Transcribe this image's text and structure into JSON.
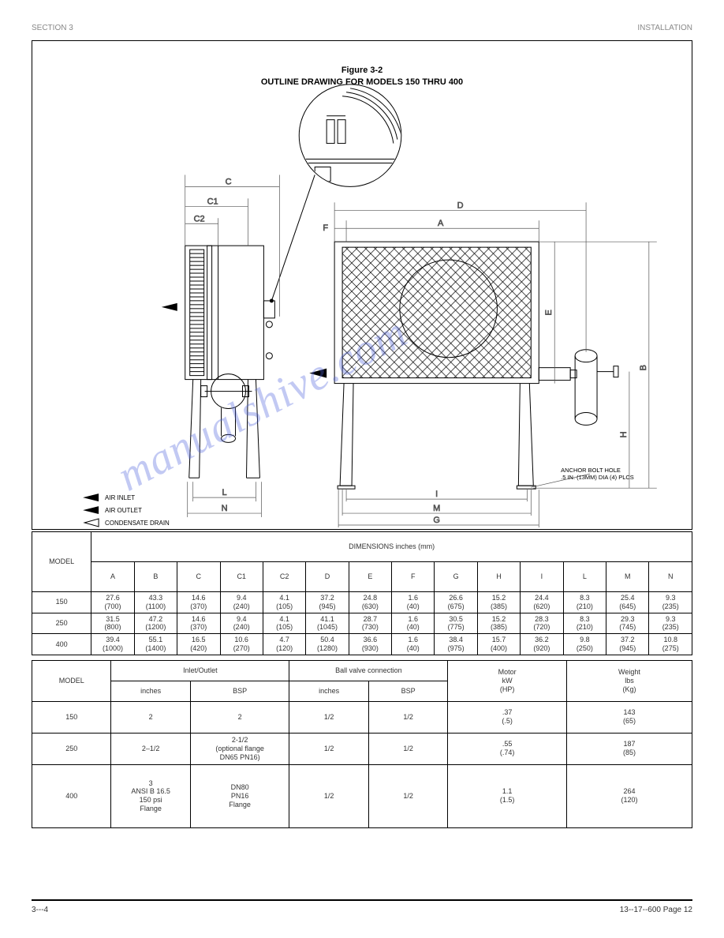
{
  "header": {
    "section": "SECTION 3",
    "title": "INSTALLATION"
  },
  "diagram": {
    "fig_label": "Figure 3-2",
    "fig_title": "OUTLINE DRAWING FOR MODELS 150 THRU 400",
    "inlet_label": "AIR INLET",
    "outlet_label": "AIR OUTLET",
    "drain_label": "CONDENSATE DRAIN",
    "anchor_label": "ANCHOR BOLT HOLE\n.5 IN. (13MM) DIA (4) PLCS",
    "dims": {
      "A": "A",
      "B": "B",
      "C": "C",
      "C1": "C1",
      "C2": "C2",
      "D": "D",
      "E": "E",
      "F": "F",
      "G": "G",
      "H": "H",
      "I": "I",
      "L": "L",
      "M": "M",
      "N": "N"
    }
  },
  "table_dims": {
    "model_header": "MODEL",
    "dim_header": "DIMENSIONS inches (mm)",
    "cols": [
      "A",
      "B",
      "C",
      "C1",
      "C2",
      "D",
      "E",
      "F",
      "G",
      "H",
      "I",
      "L",
      "M",
      "N"
    ],
    "rows": [
      {
        "model": "150",
        "A": "27.6\n(700)",
        "B": "43.3\n(1100)",
        "C": "14.6\n(370)",
        "C1": "9.4\n(240)",
        "C2": "4.1\n(105)",
        "D": "37.2\n(945)",
        "E": "24.8\n(630)",
        "F": "1.6\n(40)",
        "G": "26.6\n(675)",
        "H": "15.2\n(385)",
        "I": "24.4\n(620)",
        "L": "8.3\n(210)",
        "M": "25.4\n(645)",
        "N": "9.3\n(235)"
      },
      {
        "model": "250",
        "A": "31.5\n(800)",
        "B": "47.2\n(1200)",
        "C": "14.6\n(370)",
        "C1": "9.4\n(240)",
        "C2": "4.1\n(105)",
        "D": "41.1\n(1045)",
        "E": "28.7\n(730)",
        "F": "1.6\n(40)",
        "G": "30.5\n(775)",
        "H": "15.2\n(385)",
        "I": "28.3\n(720)",
        "L": "8.3\n(210)",
        "M": "29.3\n(745)",
        "N": "9.3\n(235)"
      },
      {
        "model": "400",
        "A": "39.4\n(1000)",
        "B": "55.1\n(1400)",
        "C": "16.5\n(420)",
        "C1": "10.6\n(270)",
        "C2": "4.7\n(120)",
        "D": "50.4\n(1280)",
        "E": "36.6\n(930)",
        "F": "1.6\n(40)",
        "G": "38.4\n(975)",
        "H": "15.7\n(400)",
        "I": "36.2\n(920)",
        "L": "9.8\n(250)",
        "M": "37.2\n(945)",
        "N": "10.8\n(275)"
      }
    ]
  },
  "table_spec": {
    "model_header": "MODEL",
    "inout_header": "Inlet/Outlet",
    "ball_header": "Ball valve connection",
    "motor_header": [
      "Motor",
      "kW",
      "(HP)"
    ],
    "weight_header": [
      "Weight",
      "lbs",
      "(Kg)"
    ],
    "sub_in": "inches",
    "sub_bsp": "BSP",
    "rows_std": [
      {
        "model": "150",
        "in": "2",
        "bsp": "2",
        "ball_in": "1/2",
        "ball_bsp": "1/2",
        "motor": ".37\n(.5)",
        "weight": "143\n(65)"
      },
      {
        "model": "250",
        "in": "2–1/2",
        "bsp": "2-1/2\n(optional flange\nDN65 PN16)",
        "ball_in": "1/2",
        "ball_bsp": "1/2",
        "motor": ".55\n(.74)",
        "weight": "187\n(85)"
      },
      {
        "model": "400",
        "in": "3\nANSI B 16.5\n150 psi\nFlange",
        "bsp": "DN80\nPN16\nFlange",
        "ball_in": "1/2",
        "ball_bsp": "1/2",
        "motor": "1.1\n(1.5)",
        "weight": "264\n(120)"
      }
    ]
  },
  "footer": {
    "left": "3---4",
    "right": "13--17--600    Page 12"
  },
  "watermark": "manualshive.com"
}
